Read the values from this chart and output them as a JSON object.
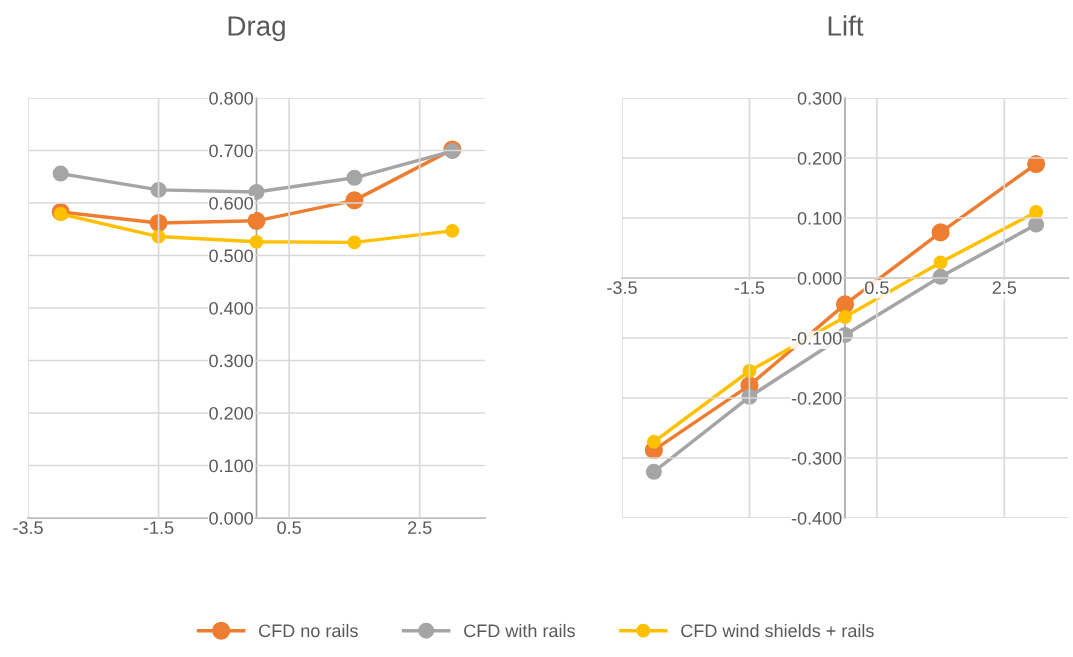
{
  "chart_data": [
    {
      "type": "line",
      "title": "Drag",
      "x": [
        -3,
        -1.5,
        0,
        1.5,
        3
      ],
      "xlim": [
        -3.5,
        3.5
      ],
      "xticks": [
        -3.5,
        -1.5,
        0.5,
        2.5
      ],
      "ylim": [
        0,
        0.8
      ],
      "yticks": [
        {
          "value": 0,
          "label": "0.000"
        },
        {
          "value": 0.1,
          "label": "0.100"
        },
        {
          "value": 0.2,
          "label": "0.200"
        },
        {
          "value": 0.3,
          "label": "0.300"
        },
        {
          "value": 0.4,
          "label": "0.400"
        },
        {
          "value": 0.5,
          "label": "0.500"
        },
        {
          "value": 0.6,
          "label": "0.600"
        },
        {
          "value": 0.7,
          "label": "0.700"
        },
        {
          "value": 0.8,
          "label": "0.800"
        }
      ],
      "grid": true,
      "marker": "circle",
      "legend": "bottom",
      "series": [
        {
          "name": "CFD no rails",
          "color": "#ed7d31",
          "values": [
            0.583,
            0.562,
            0.566,
            0.605,
            0.702
          ]
        },
        {
          "name": "CFD with rails",
          "color": "#a5a5a5",
          "values": [
            0.656,
            0.625,
            0.621,
            0.648,
            0.699
          ]
        },
        {
          "name": "CFD wind shields + rails",
          "color": "#ffc000",
          "values": [
            0.579,
            0.536,
            0.526,
            0.525,
            0.547
          ]
        }
      ]
    },
    {
      "type": "line",
      "title": "Lift",
      "x": [
        -3,
        -1.5,
        0,
        1.5,
        3
      ],
      "xlim": [
        -3.5,
        3.5
      ],
      "xticks": [
        -3.5,
        -1.5,
        0.5,
        2.5
      ],
      "ylim": [
        -0.4,
        0.3
      ],
      "yticks": [
        {
          "value": -0.4,
          "label": "-0.400"
        },
        {
          "value": -0.3,
          "label": "-0.300"
        },
        {
          "value": -0.2,
          "label": "-0.200"
        },
        {
          "value": -0.1,
          "label": "-0.100"
        },
        {
          "value": 0,
          "label": "0.000"
        },
        {
          "value": 0.1,
          "label": "0.100"
        },
        {
          "value": 0.2,
          "label": "0.200"
        },
        {
          "value": 0.3,
          "label": "0.300"
        }
      ],
      "grid": true,
      "marker": "circle",
      "series": [
        {
          "color": "#ed7d31",
          "values": [
            -0.287,
            -0.179,
            -0.044,
            0.076,
            0.19
          ]
        },
        {
          "color": "#a5a5a5",
          "values": [
            -0.323,
            -0.198,
            -0.095,
            0.002,
            0.089
          ]
        },
        {
          "color": "#ffc000",
          "values": [
            -0.273,
            -0.155,
            -0.065,
            0.026,
            0.11
          ]
        }
      ]
    }
  ]
}
